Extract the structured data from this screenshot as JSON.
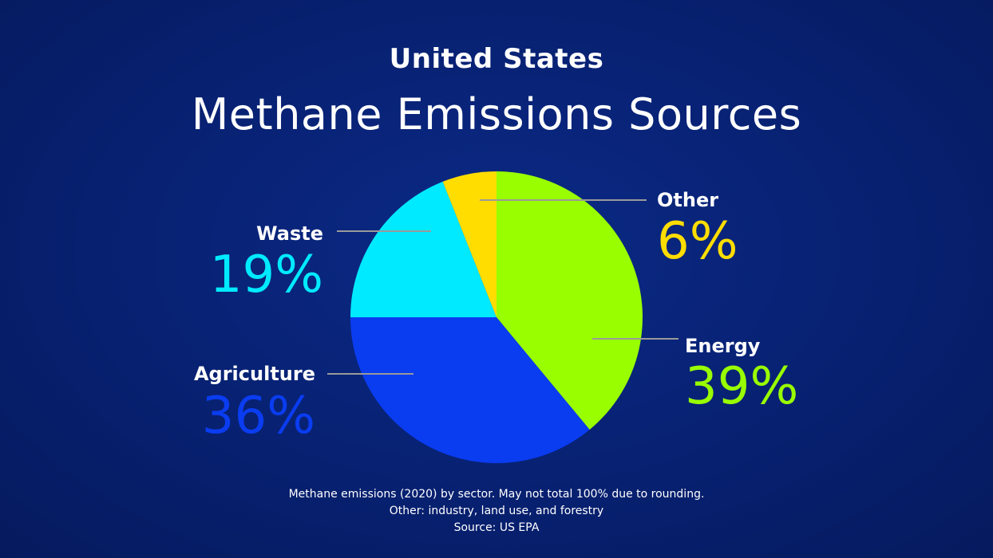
{
  "header": {
    "subtitle": "United States",
    "title": "Methane Emissions Sources"
  },
  "chart_data": {
    "type": "pie",
    "title": "Methane Emissions Sources",
    "subtitle": "United States",
    "start_angle_deg": 0,
    "direction": "clockwise",
    "slices": [
      {
        "label": "Energy",
        "value": 39,
        "percent_label": "39%",
        "color": "#99ff00"
      },
      {
        "label": "Agriculture",
        "value": 36,
        "percent_label": "36%",
        "color": "#0a3cf0"
      },
      {
        "label": "Waste",
        "value": 19,
        "percent_label": "19%",
        "color": "#00eaff"
      },
      {
        "label": "Other",
        "value": 6,
        "percent_label": "6%",
        "color": "#ffdd00"
      }
    ],
    "leader_line_color": "#9a9a9a"
  },
  "footer": {
    "line1": "Methane emissions (2020) by sector. May not total 100% due to rounding.",
    "line2": "Other: industry, land use, and forestry",
    "line3": "Source: US EPA"
  }
}
